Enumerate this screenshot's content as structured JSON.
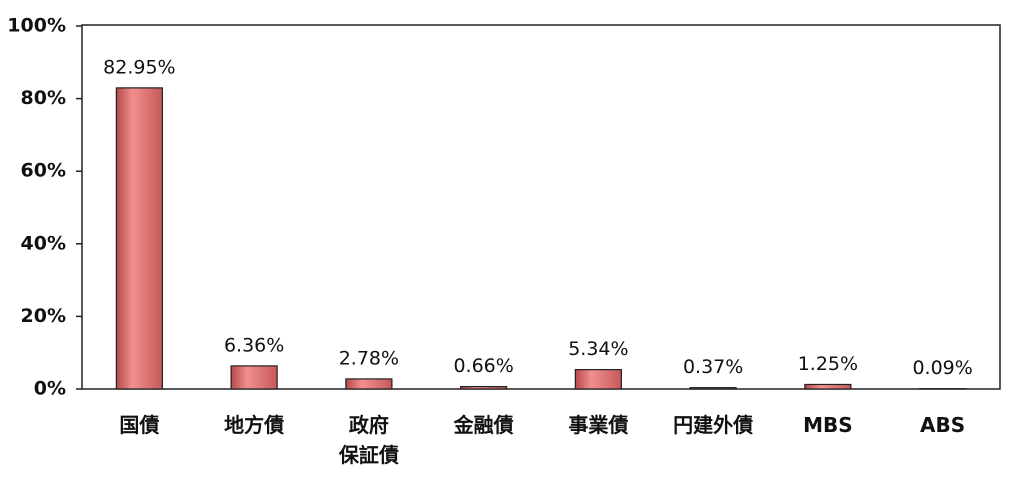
{
  "chart_data": {
    "type": "bar",
    "categories": [
      "国債",
      "地方債",
      "政府\n保証債",
      "金融債",
      "事業債",
      "円建外債",
      "MBS",
      "ABS"
    ],
    "values": [
      82.95,
      6.36,
      2.78,
      0.66,
      5.34,
      0.37,
      1.25,
      0.09
    ],
    "value_labels": [
      "82.95%",
      "6.36%",
      "2.78%",
      "0.66%",
      "5.34%",
      "0.37%",
      "1.25%",
      "0.09%"
    ],
    "color": "#e06a6a",
    "ylim": [
      0,
      100
    ],
    "yticks": [
      {
        "value": 0,
        "label": "0%"
      },
      {
        "value": 20,
        "label": "20%"
      },
      {
        "value": 40,
        "label": "40%"
      },
      {
        "value": 60,
        "label": "60%"
      },
      {
        "value": 80,
        "label": "80%"
      },
      {
        "value": 100,
        "label": "100%"
      }
    ],
    "grid": false
  }
}
